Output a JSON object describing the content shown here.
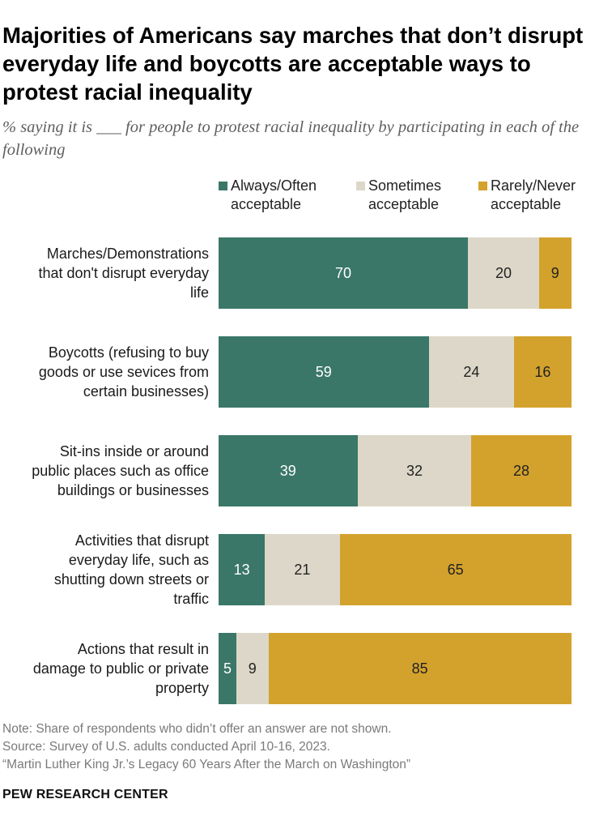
{
  "title": "Majorities of Americans say marches that don’t disrupt everyday life and boycotts are acceptable ways to protest racial inequality",
  "subtitle": "% saying it is ___ for people to protest racial inequality by participating in each of the following",
  "legend": [
    {
      "label_line1": "Always/Often",
      "label_line2": "acceptable",
      "color": "#3a7768"
    },
    {
      "label_line1": "Sometimes",
      "label_line2": "acceptable",
      "color": "#dcd7c8"
    },
    {
      "label_line1": "Rarely/Never",
      "label_line2": "acceptable",
      "color": "#d3a22d"
    }
  ],
  "chart_data": {
    "type": "bar",
    "orientation": "horizontal",
    "stacked": true,
    "categories": [
      "Marches/Demonstrations that don't disrupt everyday life",
      "Boycotts (refusing to buy goods or use sevices from certain businesses)",
      "Sit-ins inside or around public places such as office buildings or businesses",
      "Activities that disrupt everyday life, such as shutting down streets or traffic",
      "Actions that result in damage to public or private property"
    ],
    "category_lines": [
      [
        "Marches/Demonstrations",
        "that don't disrupt everyday",
        "life"
      ],
      [
        "Boycotts (refusing to buy",
        "goods or use sevices from",
        "certain businesses)"
      ],
      [
        "Sit-ins inside or around",
        "public places such as office",
        "buildings or businesses"
      ],
      [
        "Activities that disrupt",
        "everyday life, such as",
        "shutting down streets or",
        "traffic"
      ],
      [
        "Actions that result in",
        "damage to public or private",
        "property"
      ]
    ],
    "series": [
      {
        "name": "Always/Often acceptable",
        "color": "#3a7768",
        "label_color": "#ffffff",
        "values": [
          70,
          59,
          39,
          13,
          5
        ]
      },
      {
        "name": "Sometimes acceptable",
        "color": "#dcd7c8",
        "label_color": "#222222",
        "values": [
          20,
          24,
          32,
          21,
          9
        ]
      },
      {
        "name": "Rarely/Never acceptable",
        "color": "#d3a22d",
        "label_color": "#222222",
        "values": [
          9,
          16,
          28,
          65,
          85
        ]
      }
    ],
    "xlim": [
      0,
      100
    ],
    "title": "Majorities of Americans say marches that don’t disrupt everyday life and boycotts are acceptable ways to protest racial inequality",
    "xlabel": "",
    "ylabel": ""
  },
  "notes": [
    "Note: Share of respondents who didn’t offer an answer are not shown.",
    "Source: Survey of U.S. adults conducted April 10-16, 2023.",
    "“Martin Luther King Jr.’s Legacy 60 Years After the March on Washington”"
  ],
  "brand": "PEW RESEARCH CENTER"
}
